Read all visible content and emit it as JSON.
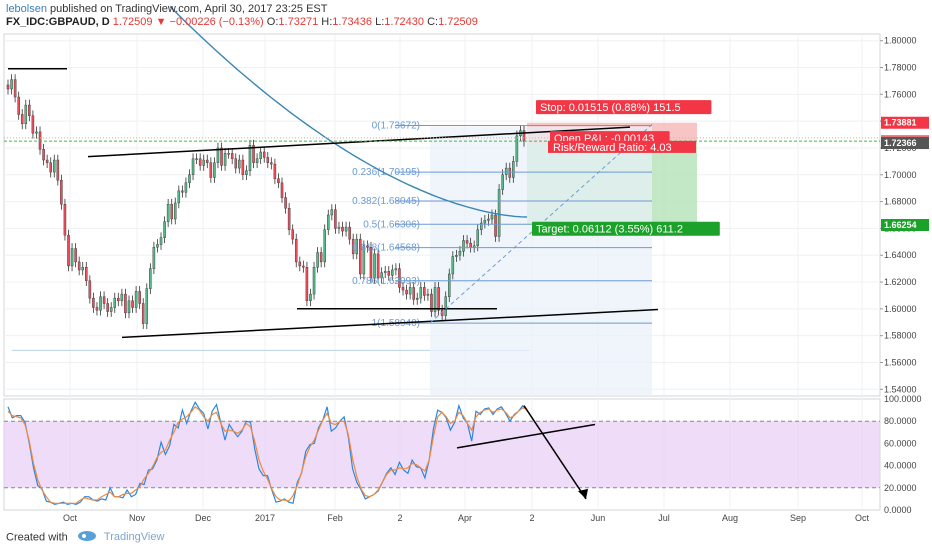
{
  "header": {
    "author": "lebolsen",
    "published": "published on TradingView.com, April 30, 2017 23:25 EST",
    "symbol": "FX_IDC:GBPAUD, D",
    "last": "1.72509",
    "change": "▼ −0.00226 (−0.13%)",
    "open_label": "O:",
    "open": "1.73271",
    "high_label": "H:",
    "high": "1.73436",
    "low_label": "L:",
    "low": "1.72430",
    "close_label": "C:",
    "close": "1.72509"
  },
  "footer": {
    "created_with": "Created with",
    "brand": "TradingView"
  },
  "colors": {
    "up": "#53b987",
    "down": "#eb4d5c",
    "ma": "#3a86b5",
    "fib": "#6c9bd2",
    "stoch_k": "#2e86de",
    "stoch_d": "#f08a3c",
    "stoch_band": "#e8d0f7",
    "stop_zone": "#f6b7b9",
    "target_zone": "#b4e2b8",
    "price_line": "#3ac13a"
  },
  "chart_data": [
    {
      "type": "candlestick",
      "title": "GBPAUD Daily",
      "x_axis_labels": [
        "Oct",
        "Nov",
        "Dec",
        "2017",
        "Feb",
        "2",
        "Apr",
        "2",
        "Jun",
        "Jul",
        "Aug",
        "Sep",
        "Oct"
      ],
      "y_ticks": [
        "1.80000",
        "1.78000",
        "1.76000",
        "1.74000",
        "1.72000",
        "1.70000",
        "1.68000",
        "1.66000",
        "1.64000",
        "1.62000",
        "1.60000",
        "1.58000",
        "1.56000",
        "1.54000"
      ],
      "ylim": [
        1.535,
        1.805
      ],
      "price_labels": [
        {
          "text": "1.73881",
          "value": 1.73881,
          "kind": "stop"
        },
        {
          "text": "1.72509",
          "value": 1.72509,
          "kind": "last"
        },
        {
          "text": "1.72366",
          "value": 1.72366,
          "kind": "neutral"
        },
        {
          "text": "1.66254",
          "value": 1.66254,
          "kind": "target"
        }
      ],
      "closes": [
        1.764,
        1.771,
        1.758,
        1.745,
        1.738,
        1.752,
        1.744,
        1.731,
        1.732,
        1.719,
        1.711,
        1.709,
        1.702,
        1.711,
        1.696,
        1.678,
        1.655,
        1.632,
        1.645,
        1.635,
        1.629,
        1.631,
        1.621,
        1.608,
        1.601,
        1.599,
        1.609,
        1.604,
        1.598,
        1.601,
        1.608,
        1.606,
        1.611,
        1.597,
        1.606,
        1.601,
        1.613,
        1.604,
        1.589,
        1.615,
        1.63,
        1.646,
        1.648,
        1.653,
        1.665,
        1.678,
        1.667,
        1.679,
        1.688,
        1.687,
        1.694,
        1.7,
        1.712,
        1.712,
        1.707,
        1.711,
        1.709,
        1.698,
        1.709,
        1.72,
        1.707,
        1.716,
        1.716,
        1.712,
        1.705,
        1.711,
        1.7,
        1.703,
        1.722,
        1.709,
        1.712,
        1.717,
        1.713,
        1.709,
        1.708,
        1.697,
        1.694,
        1.683,
        1.675,
        1.659,
        1.652,
        1.635,
        1.632,
        1.631,
        1.606,
        1.611,
        1.631,
        1.642,
        1.635,
        1.659,
        1.67,
        1.674,
        1.66,
        1.661,
        1.658,
        1.661,
        1.652,
        1.641,
        1.652,
        1.626,
        1.647,
        1.646,
        1.623,
        1.641,
        1.623,
        1.627,
        1.628,
        1.625,
        1.629,
        1.63,
        1.616,
        1.614,
        1.611,
        1.616,
        1.607,
        1.608,
        1.616,
        1.61,
        1.611,
        1.598,
        1.616,
        1.599,
        1.595,
        1.609,
        1.626,
        1.639,
        1.64,
        1.643,
        1.651,
        1.649,
        1.646,
        1.647,
        1.659,
        1.664,
        1.666,
        1.667,
        1.67,
        1.654,
        1.689,
        1.7,
        1.705,
        1.698,
        1.71,
        1.729,
        1.733,
        1.725
      ],
      "lines": [
        {
          "name": "trendline",
          "from": [
            "1.7791",
            1
          ],
          "to": [
            "1.7791",
            10
          ]
        },
        {
          "name": "resistance",
          "from": 1.7135,
          "to": 1.7355
        },
        {
          "name": "support",
          "from": 1.5787,
          "to": 1.5995
        },
        {
          "name": "double-bottom",
          "value": 1.6001
        }
      ],
      "moving_average": {
        "type": "SMA",
        "start": 1.8255,
        "end": 1.6685
      },
      "fibonacci": [
        {
          "label": "0(1.73672)",
          "value": 1.73672
        },
        {
          "label": "0.236(1.70195)",
          "value": 1.70195
        },
        {
          "label": "0.382(1.68045)",
          "value": 1.68045
        },
        {
          "label": "0.5(1.66306)",
          "value": 1.66306
        },
        {
          "label": "0.618(1.64568)",
          "value": 1.64568
        },
        {
          "label": "0.786(1.62093)",
          "value": 1.62093
        },
        {
          "label": "1(1.58940)",
          "value": 1.5894
        }
      ],
      "position": {
        "stop_text": "Stop: 0.01515 (0.88%) 151.5",
        "pnl_text": "Open P&L: -0.00143",
        "rr_text": "Risk/Reward Ratio: 4.03",
        "target_text": "Target: 0.06112 (3.55%) 611.2",
        "entry": 1.72366,
        "stop": 1.73881,
        "target": 1.66254
      }
    },
    {
      "type": "line",
      "title": "Stochastic",
      "y_ticks": [
        "100.0000",
        "80.0000",
        "60.0000",
        "40.0000",
        "20.0000",
        "0.0000"
      ],
      "ylim": [
        0,
        100
      ],
      "bands": [
        20,
        80
      ],
      "series": [
        {
          "name": "%K",
          "values": [
            93,
            83,
            85,
            85,
            79,
            60,
            38,
            22,
            19,
            8,
            7,
            5,
            6,
            7,
            5,
            6,
            5,
            7,
            12,
            12,
            9,
            8,
            10,
            9,
            20,
            12,
            12,
            11,
            18,
            12,
            14,
            24,
            23,
            36,
            37,
            45,
            61,
            50,
            58,
            77,
            74,
            90,
            78,
            89,
            97,
            91,
            87,
            73,
            89,
            95,
            79,
            63,
            77,
            71,
            66,
            71,
            80,
            79,
            55,
            37,
            31,
            31,
            18,
            7,
            8,
            10,
            7,
            6,
            25,
            33,
            53,
            59,
            60,
            74,
            81,
            93,
            71,
            74,
            80,
            84,
            66,
            37,
            25,
            18,
            10,
            12,
            14,
            17,
            25,
            33,
            38,
            32,
            43,
            36,
            33,
            45,
            39,
            38,
            29,
            45,
            73,
            90,
            88,
            83,
            72,
            79,
            94,
            83,
            78,
            62,
            89,
            86,
            91,
            92,
            86,
            91,
            93,
            87,
            80,
            86,
            89,
            94,
            90
          ]
        },
        {
          "name": "%D",
          "values": [
            89,
            85,
            84,
            83,
            77,
            62,
            42,
            27,
            18,
            12,
            7,
            6,
            6,
            6,
            6,
            6,
            6,
            9,
            11,
            10,
            9,
            9,
            12,
            14,
            16,
            12,
            12,
            14,
            15,
            15,
            18,
            21,
            28,
            33,
            39,
            47,
            52,
            54,
            63,
            70,
            79,
            82,
            84,
            88,
            93,
            90,
            84,
            80,
            86,
            88,
            78,
            71,
            72,
            71,
            69,
            72,
            78,
            75,
            62,
            45,
            35,
            28,
            19,
            12,
            9,
            9,
            8,
            13,
            22,
            34,
            48,
            57,
            63,
            72,
            81,
            87,
            78,
            77,
            80,
            80,
            68,
            46,
            30,
            19,
            13,
            12,
            14,
            18,
            25,
            32,
            36,
            36,
            38,
            37,
            38,
            42,
            41,
            38,
            35,
            45,
            66,
            84,
            88,
            84,
            78,
            80,
            88,
            85,
            78,
            72,
            84,
            88,
            90,
            91,
            88,
            90,
            91,
            88,
            83,
            85,
            89,
            92,
            91
          ]
        }
      ]
    }
  ]
}
